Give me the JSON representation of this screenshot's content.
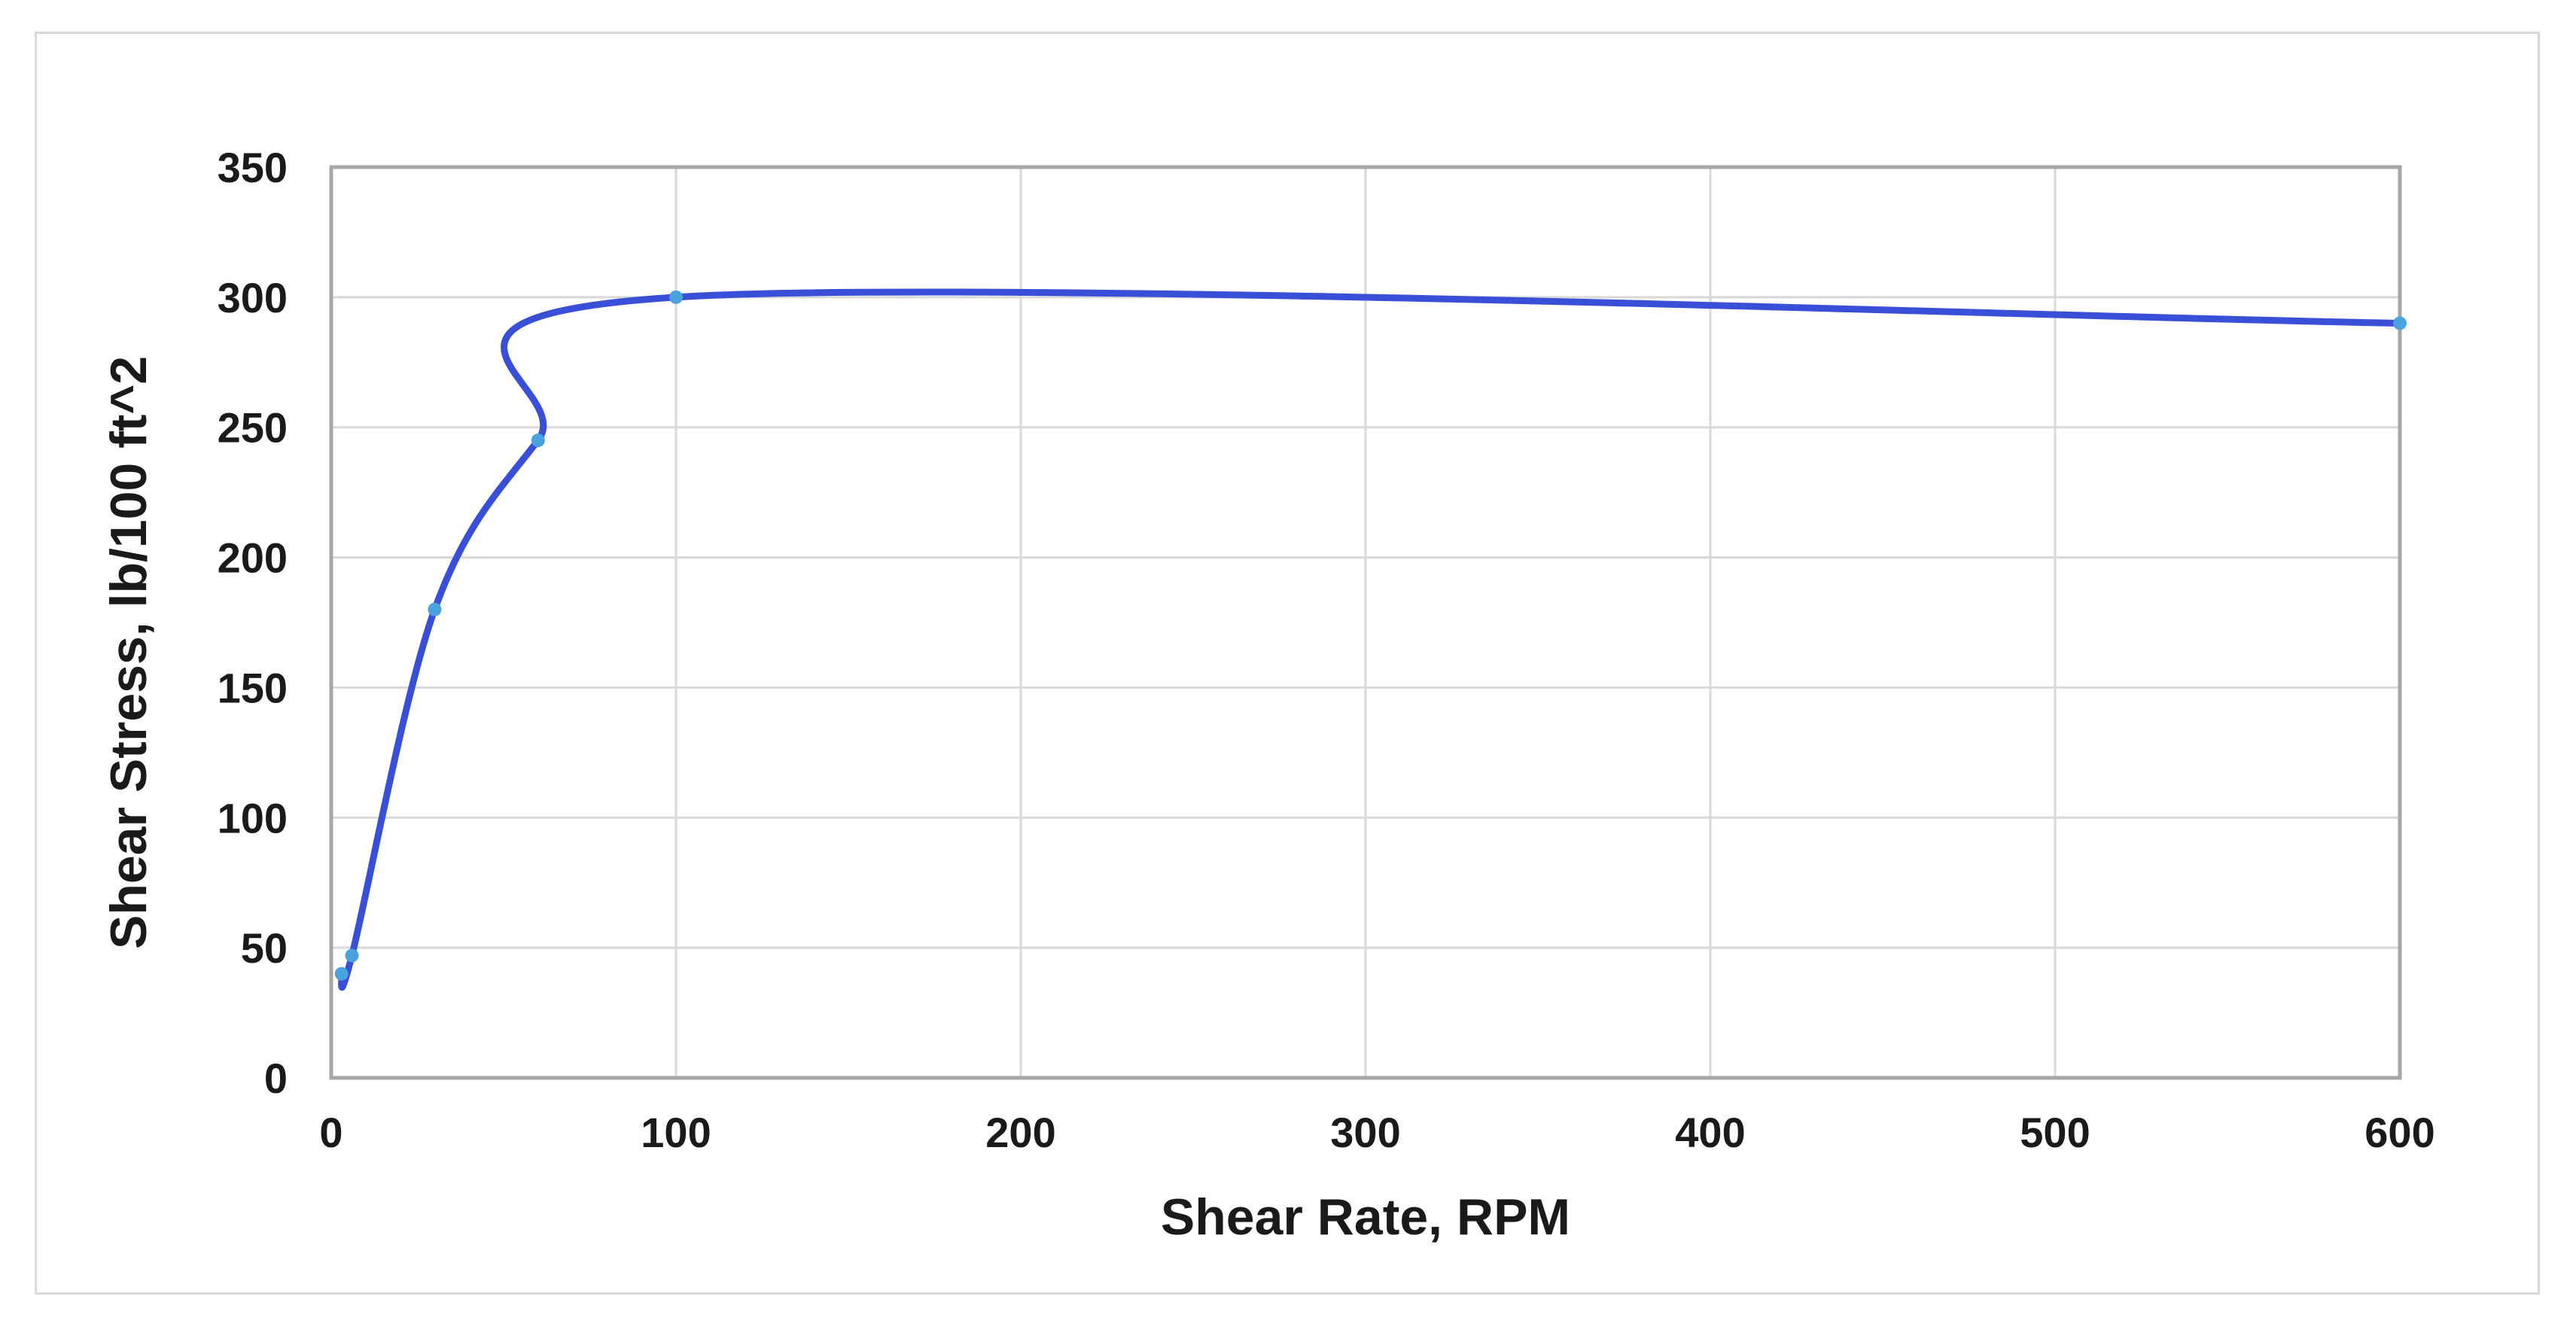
{
  "chart_data": {
    "type": "scatter",
    "title": "",
    "xlabel": "Shear Rate, RPM",
    "ylabel": "Shear Stress, lb/100 ft^2",
    "xlim": [
      0,
      600
    ],
    "ylim": [
      0,
      350
    ],
    "x_ticks": [
      0,
      100,
      200,
      300,
      400,
      500,
      600
    ],
    "y_ticks": [
      0,
      50,
      100,
      150,
      200,
      250,
      300,
      350
    ],
    "grid": true,
    "legend": "none",
    "smooth_line": true,
    "line_color": "#3a4fd8",
    "marker_color": "#4aa3df",
    "series": [
      {
        "x": [
          3,
          6,
          30,
          60,
          100,
          600
        ],
        "y": [
          40,
          47,
          180,
          245,
          300,
          290
        ]
      }
    ]
  }
}
